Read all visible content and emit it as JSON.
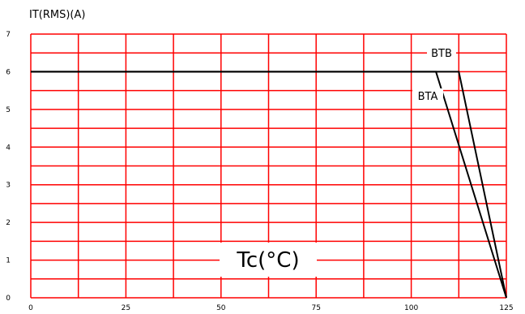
{
  "chart_data": {
    "type": "line",
    "ylabel": "IT(RMS)(A)",
    "xlabel": "Tc(°C)",
    "xlim": [
      0,
      125
    ],
    "ylim": [
      0,
      7
    ],
    "x_ticks": [
      "0",
      "25",
      "50",
      "75",
      "100",
      "125"
    ],
    "y_ticks": [
      "0",
      "1",
      "2",
      "3",
      "4",
      "5",
      "6",
      "7"
    ],
    "grid": true,
    "grid_color": "#ff0000",
    "line_color": "#000000",
    "series": [
      {
        "name": "BTB",
        "x": [
          0,
          112.5,
          125
        ],
        "y": [
          6,
          6,
          0
        ]
      },
      {
        "name": "BTA",
        "x": [
          0,
          106.5,
          125
        ],
        "y": [
          6,
          6,
          0
        ]
      }
    ]
  }
}
